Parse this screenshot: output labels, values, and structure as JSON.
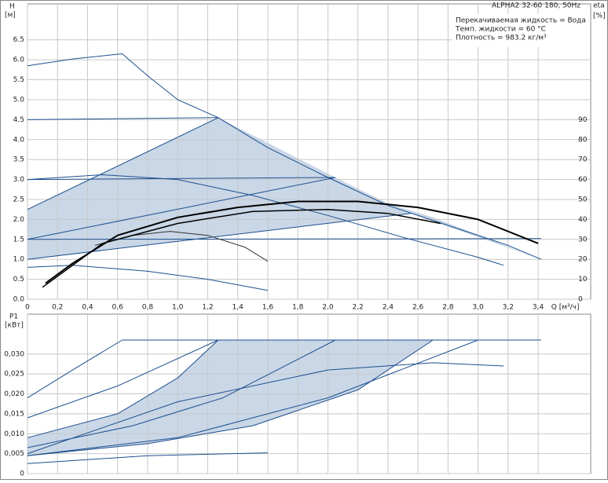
{
  "header": {
    "model": "ALPHA2 32-60 180, 50Hz",
    "liquid": "Перекачиваемая жидкость = Вода",
    "temp": "Темп. жидкости = 60 °C",
    "density": "Плотность = 983.2 кг/м³"
  },
  "chart_data": [
    {
      "type": "line",
      "ylabel": "H",
      "yunit": "[м]",
      "xlabel": "Q [м³/ч]",
      "y2label": "eta",
      "y2unit": "[%]",
      "xlim": [
        0,
        3.75
      ],
      "ylim": [
        0,
        7.4
      ],
      "y2lim": [
        0,
        148
      ],
      "grid": true,
      "xticks": [
        0,
        {
          "value": 0.2,
          "label": "0,2"
        },
        {
          "value": 0.4,
          "label": "0,4"
        },
        {
          "value": 0.6,
          "label": "0,6"
        },
        {
          "value": 0.8,
          "label": "0,8"
        },
        {
          "value": 1.0,
          "label": "1,0"
        },
        {
          "value": 1.2,
          "label": "1,2"
        },
        {
          "value": 1.4,
          "label": "1,4"
        },
        {
          "value": 1.6,
          "label": "1,6"
        },
        {
          "value": 1.8,
          "label": "1,8"
        },
        {
          "value": 2.0,
          "label": "2,0"
        },
        {
          "value": 2.2,
          "label": "2,2"
        },
        {
          "value": 2.4,
          "label": "2,4"
        },
        {
          "value": 2.6,
          "label": "2,6"
        },
        {
          "value": 2.8,
          "label": "2,8"
        },
        {
          "value": 3.0,
          "label": "3,0"
        },
        {
          "value": 3.2,
          "label": "3,2"
        },
        {
          "value": 3.4,
          "label": "3,4"
        }
      ],
      "yticks": [
        {
          "value": 0,
          "label": "0.0"
        },
        0.5,
        {
          "value": 1,
          "label": "1.0"
        },
        1.5,
        {
          "value": 2,
          "label": "2.0"
        },
        2.5,
        {
          "value": 3,
          "label": "3.0"
        },
        3.5,
        {
          "value": 4,
          "label": "4.0"
        },
        4.5,
        {
          "value": 5,
          "label": "5.0"
        },
        5.5,
        {
          "value": 6,
          "label": "6.0"
        },
        6.5
      ],
      "y2ticks": [
        0,
        10,
        20,
        30,
        40,
        50,
        60,
        70,
        80,
        90
      ],
      "series": [
        {
          "style": "area",
          "color": "#c9d7e7",
          "x": [
            0,
            1.27,
            2.05,
            2.4,
            2.7,
            3.42,
            2.55,
            0
          ],
          "values": [
            2.25,
            4.55,
            3.05,
            2.4,
            2.05,
            1.0,
            2.15,
            1.0
          ]
        },
        {
          "color": "#1d4f8f",
          "x": [
            0,
            0.3,
            0.63,
            0.8,
            1.0,
            1.27,
            1.6,
            2.0,
            2.4,
            2.8,
            3.2,
            3.42
          ],
          "values": [
            5.85,
            6.02,
            6.15,
            5.6,
            5.0,
            4.55,
            3.8,
            3.05,
            2.35,
            1.85,
            1.35,
            1.0
          ]
        },
        {
          "color": "#1d4f8f",
          "x": [
            0,
            1.27
          ],
          "values": [
            4.5,
            4.55
          ]
        },
        {
          "color": "#1d4f8f",
          "x": [
            0,
            1.27
          ],
          "values": [
            2.25,
            4.55
          ]
        },
        {
          "color": "#1d4f8f",
          "x": [
            0,
            2.05
          ],
          "values": [
            3.0,
            3.05
          ]
        },
        {
          "color": "#1d4f8f",
          "x": [
            0,
            2.05
          ],
          "values": [
            1.5,
            3.05
          ]
        },
        {
          "color": "#1d4f8f",
          "x": [
            0,
            3.42
          ],
          "values": [
            1.5,
            1.52
          ]
        },
        {
          "color": "#1d4f8f",
          "x": [
            0,
            2.55
          ],
          "values": [
            1.0,
            2.15
          ]
        },
        {
          "color": "#1d4f8f",
          "x": [
            0,
            0.5,
            1.0,
            1.5,
            2.0,
            2.5,
            3.0,
            3.17
          ],
          "values": [
            3.0,
            3.12,
            3.0,
            2.6,
            2.1,
            1.55,
            1.05,
            0.85
          ]
        },
        {
          "color": "#1d4f8f",
          "x": [
            0,
            0.3,
            0.8,
            1.2,
            1.6
          ],
          "values": [
            0.8,
            0.85,
            0.7,
            0.5,
            0.22
          ]
        },
        {
          "color": "#333333",
          "x": [
            0.45,
            0.7,
            0.95,
            1.2,
            1.45,
            1.6
          ],
          "values": [
            1.35,
            1.6,
            1.7,
            1.6,
            1.3,
            0.95
          ]
        },
        {
          "color": "#000000",
          "width": 2,
          "axis": "y2",
          "x": [
            0.12,
            0.3,
            0.6,
            1.0,
            1.4,
            1.8,
            2.2,
            2.6,
            3.0,
            3.4
          ],
          "values": [
            8,
            18,
            32,
            41,
            46,
            49,
            49,
            46,
            40,
            28
          ]
        },
        {
          "color": "#000000",
          "width": 1.5,
          "axis": "y2",
          "x": [
            0.1,
            0.5,
            1.0,
            1.5,
            2.0,
            2.4,
            2.75
          ],
          "values": [
            6,
            28,
            38,
            44,
            45,
            43,
            38
          ]
        }
      ]
    },
    {
      "type": "line",
      "ylabel": "P1",
      "yunit": "[кВт]",
      "xlim": [
        0,
        3.75
      ],
      "ylim": [
        0,
        0.04
      ],
      "grid": true,
      "xticks": [
        0,
        0.2,
        0.4,
        0.6,
        0.8,
        1.0,
        1.2,
        1.4,
        1.6,
        1.8,
        2.0,
        2.2,
        2.4,
        2.6,
        2.8,
        3.0,
        3.2,
        3.4
      ],
      "xtick_labels": false,
      "yticks": [
        0,
        {
          "value": 0.005,
          "label": "0,005"
        },
        {
          "value": 0.01,
          "label": "0,010"
        },
        {
          "value": 0.015,
          "label": "0,015"
        },
        {
          "value": 0.02,
          "label": "0,020"
        },
        {
          "value": 0.025,
          "label": "0,025"
        },
        {
          "value": 0.03,
          "label": "0,030"
        }
      ],
      "series": [
        {
          "style": "area",
          "color": "#c9d7e7",
          "x": [
            0,
            0.6,
            1.0,
            1.27,
            2.7,
            2.2,
            1.5,
            0.8,
            0
          ],
          "values": [
            0.009,
            0.015,
            0.024,
            0.0335,
            0.0335,
            0.021,
            0.012,
            0.0075,
            0.0045
          ]
        },
        {
          "color": "#1d4f8f",
          "x": [
            0.63,
            3.42
          ],
          "values": [
            0.0335,
            0.0335
          ]
        },
        {
          "color": "#1d4f8f",
          "x": [
            0,
            0.3,
            0.63
          ],
          "values": [
            0.019,
            0.026,
            0.0335
          ]
        },
        {
          "color": "#1d4f8f",
          "x": [
            0,
            0.6,
            1.0,
            1.27
          ],
          "values": [
            0.009,
            0.015,
            0.024,
            0.0335
          ]
        },
        {
          "color": "#1d4f8f",
          "x": [
            0,
            0.7,
            1.3,
            2.05
          ],
          "values": [
            0.0065,
            0.012,
            0.019,
            0.0335
          ]
        },
        {
          "color": "#1d4f8f",
          "x": [
            0,
            0.8,
            1.5,
            2.2,
            2.7
          ],
          "values": [
            0.0045,
            0.0075,
            0.012,
            0.021,
            0.0335
          ]
        },
        {
          "color": "#1d4f8f",
          "x": [
            0,
            1.0,
            2.0,
            3.0
          ],
          "values": [
            0.0045,
            0.009,
            0.019,
            0.0335
          ]
        },
        {
          "color": "#1d4f8f",
          "x": [
            0,
            0.6,
            1.27
          ],
          "values": [
            0.014,
            0.022,
            0.0335
          ]
        },
        {
          "color": "#1d4f8f",
          "x": [
            0,
            1.0,
            2.0,
            2.7,
            3.17
          ],
          "values": [
            0.005,
            0.018,
            0.026,
            0.0278,
            0.027
          ]
        },
        {
          "color": "#1d4f8f",
          "x": [
            0,
            0.8,
            1.6
          ],
          "values": [
            0.0025,
            0.0045,
            0.0052
          ]
        }
      ]
    }
  ]
}
